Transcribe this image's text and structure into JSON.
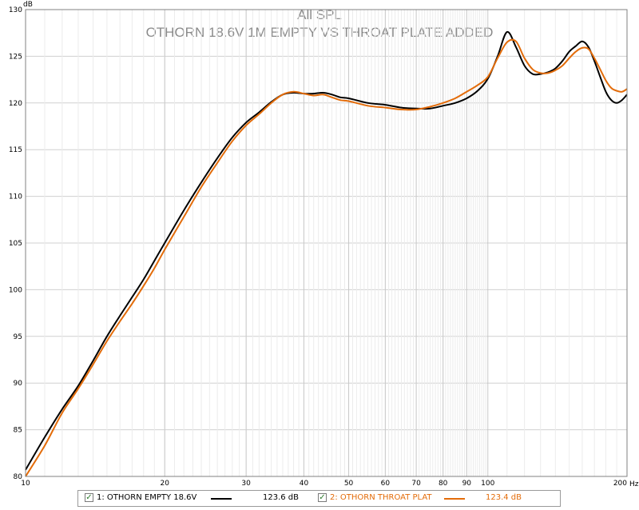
{
  "chart_data": {
    "type": "line",
    "title": "All SPL",
    "subtitle": "OTHORN 18.6V 1M EMPTY VS THROAT PLATE ADDED",
    "xlabel": "Hz",
    "ylabel": "dB",
    "x_scale": "log",
    "xlim": [
      10,
      200
    ],
    "ylim": [
      80,
      130
    ],
    "grid": true,
    "x_ticks": [
      10,
      20,
      30,
      40,
      50,
      60,
      70,
      80,
      90,
      100,
      200
    ],
    "y_ticks": [
      80,
      85,
      90,
      95,
      100,
      105,
      110,
      115,
      120,
      125,
      130
    ],
    "series": [
      {
        "name": "1: OTHORN EMPTY 18.6V",
        "color": "#000000",
        "legend_value": "123.6 dB",
        "x": [
          10,
          11,
          12,
          13,
          14,
          15,
          16,
          17,
          18,
          19,
          20,
          22,
          24,
          26,
          28,
          30,
          32,
          34,
          36,
          38,
          40,
          42,
          44,
          46,
          48,
          50,
          55,
          60,
          65,
          70,
          75,
          80,
          85,
          90,
          95,
          100,
          105,
          110,
          115,
          120,
          125,
          130,
          135,
          140,
          145,
          150,
          155,
          160,
          165,
          170,
          175,
          180,
          185,
          190,
          195,
          200
        ],
        "y": [
          80.7,
          84.2,
          87.2,
          89.7,
          92.4,
          95.0,
          97.2,
          99.2,
          101.1,
          103.1,
          105.0,
          108.5,
          111.5,
          114.1,
          116.3,
          117.9,
          119.0,
          120.1,
          120.9,
          121.1,
          121.0,
          121.0,
          121.1,
          120.9,
          120.6,
          120.5,
          120.0,
          119.8,
          119.5,
          119.4,
          119.4,
          119.7,
          120.0,
          120.5,
          121.3,
          122.6,
          125.0,
          127.6,
          126.0,
          124.0,
          123.1,
          123.1,
          123.3,
          123.7,
          124.5,
          125.5,
          126.1,
          126.6,
          126.0,
          124.5,
          122.8,
          121.2,
          120.3,
          120.0,
          120.3,
          120.9
        ]
      },
      {
        "name": "2: OTHORN THROAT PLAT",
        "color": "#e36c0a",
        "legend_value": "123.4 dB",
        "x": [
          10,
          11,
          12,
          13,
          14,
          15,
          16,
          17,
          18,
          19,
          20,
          22,
          24,
          26,
          28,
          30,
          32,
          34,
          36,
          38,
          40,
          42,
          44,
          46,
          48,
          50,
          55,
          60,
          65,
          70,
          75,
          80,
          85,
          90,
          95,
          100,
          105,
          110,
          115,
          120,
          125,
          130,
          135,
          140,
          145,
          150,
          155,
          160,
          165,
          170,
          175,
          180,
          185,
          190,
          195,
          200
        ],
        "y": [
          80.0,
          83.3,
          86.8,
          89.4,
          92.0,
          94.5,
          96.6,
          98.5,
          100.4,
          102.3,
          104.3,
          107.8,
          111.0,
          113.6,
          115.9,
          117.6,
          118.8,
          120.0,
          120.9,
          121.2,
          121.0,
          120.8,
          120.9,
          120.6,
          120.3,
          120.2,
          119.7,
          119.5,
          119.3,
          119.3,
          119.6,
          120.0,
          120.5,
          121.2,
          121.9,
          122.8,
          124.8,
          126.5,
          126.6,
          124.8,
          123.6,
          123.2,
          123.2,
          123.5,
          124.0,
          124.8,
          125.5,
          125.9,
          125.8,
          124.8,
          123.6,
          122.4,
          121.6,
          121.3,
          121.2,
          121.5
        ]
      }
    ]
  }
}
